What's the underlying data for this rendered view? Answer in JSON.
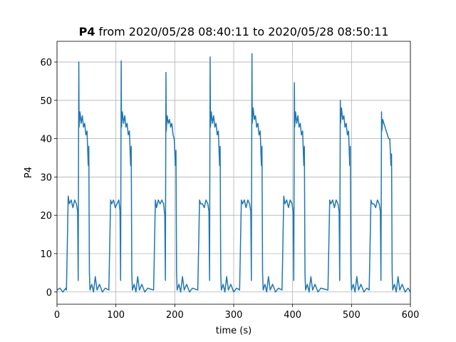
{
  "chart_data": {
    "type": "line",
    "title": [
      "P4",
      "from 2020/05/28 08:40:11 to 2020/05/28 08:50:11"
    ],
    "xlabel": "time (s)",
    "ylabel": "P4",
    "color": "#1f77b4",
    "grid": true,
    "xlim": [
      0,
      600
    ],
    "ylim": [
      -3.2,
      65.4
    ],
    "xticks": [
      0,
      100,
      200,
      300,
      400,
      500,
      600
    ],
    "yticks": [
      0,
      10,
      20,
      30,
      40,
      50,
      60
    ],
    "x": [
      0,
      5,
      10,
      15,
      16,
      17,
      19,
      21,
      24,
      27,
      30,
      33,
      35,
      36,
      37,
      37.5,
      39,
      41,
      43,
      45,
      47,
      49,
      51,
      53,
      54,
      55,
      56,
      59,
      62,
      65,
      68,
      72,
      77,
      82,
      88,
      89,
      91,
      93,
      96,
      99,
      102,
      105,
      107,
      108,
      109,
      109.5,
      111,
      113,
      115,
      117,
      119,
      121,
      123,
      125,
      126,
      127,
      128,
      131,
      134,
      137,
      140,
      144,
      149,
      154,
      164,
      165,
      167,
      169,
      172,
      175,
      178,
      181,
      183,
      184,
      185,
      185.5,
      187,
      189,
      191,
      193,
      195,
      197,
      199,
      201,
      202,
      203,
      204,
      207,
      210,
      213,
      216,
      220,
      225,
      230,
      239,
      240,
      242,
      244,
      247,
      250,
      253,
      256,
      258,
      259,
      260,
      260.5,
      262,
      264,
      266,
      268,
      270,
      272,
      274,
      276,
      277,
      278,
      279,
      282,
      285,
      288,
      291,
      295,
      300,
      305,
      310,
      311,
      313,
      315,
      318,
      321,
      324,
      327,
      329,
      330,
      331,
      331.5,
      333,
      335,
      337,
      339,
      341,
      343,
      345,
      347,
      348,
      349,
      350,
      353,
      356,
      359,
      362,
      366,
      371,
      376,
      382,
      383,
      385,
      387,
      390,
      393,
      396,
      399,
      401,
      402,
      403,
      403.5,
      405,
      407,
      409,
      411,
      413,
      415,
      417,
      419,
      420,
      421,
      422,
      425,
      428,
      431,
      434,
      438,
      443,
      448,
      460,
      461,
      463,
      465,
      468,
      471,
      474,
      477,
      479,
      480,
      481,
      481.5,
      483,
      485,
      487,
      489,
      491,
      493,
      495,
      497,
      498,
      499,
      500,
      503,
      506,
      509,
      512,
      516,
      521,
      526,
      530,
      531,
      533,
      535,
      538,
      541,
      544,
      547,
      549,
      550,
      551,
      551.5,
      553,
      555,
      557,
      559,
      561,
      563,
      565,
      567,
      568,
      569,
      570,
      573,
      576,
      579,
      582,
      586,
      591,
      596,
      600
    ],
    "values": [
      0.5,
      1,
      0,
      1,
      0.5,
      8,
      25,
      23,
      24,
      22,
      24,
      23,
      21,
      3,
      60,
      43,
      47,
      44,
      46,
      43,
      44,
      41,
      42,
      33,
      38,
      5,
      0.5,
      2,
      0,
      4,
      0.5,
      2,
      0,
      1,
      0.5,
      8,
      24,
      23,
      24,
      22,
      23,
      24,
      21,
      3,
      60.3,
      43,
      47,
      44,
      46,
      43,
      44,
      41,
      42,
      33,
      38,
      5,
      0.5,
      2,
      0,
      4,
      0.5,
      2,
      0,
      1,
      0.5,
      8,
      24,
      22,
      24,
      23,
      24,
      23,
      20,
      3,
      57.3,
      42,
      46,
      44,
      45,
      43,
      44,
      41,
      40,
      33,
      37,
      5,
      0.5,
      2,
      0,
      4,
      0.5,
      2,
      0,
      1,
      0.5,
      8,
      24,
      23,
      23,
      22,
      24,
      23,
      21,
      3,
      61.3,
      43,
      47,
      44,
      46,
      43,
      44,
      41,
      42,
      33,
      38,
      5,
      0.5,
      2,
      0,
      4,
      0.5,
      2,
      0,
      1,
      0.5,
      8,
      24,
      23,
      24,
      22,
      24,
      23,
      21,
      3,
      62.2,
      44,
      48,
      45,
      46,
      43,
      44,
      41,
      42,
      33,
      38,
      5,
      0.5,
      2,
      0,
      4,
      0.5,
      2,
      0,
      1,
      0.5,
      8,
      25,
      23,
      24,
      22,
      24,
      23,
      21,
      3,
      54.6,
      43,
      47,
      44,
      46,
      43,
      44,
      41,
      42,
      33,
      38,
      5,
      0.5,
      2,
      0,
      4,
      0.5,
      2,
      0,
      1,
      0.5,
      8,
      24,
      23,
      24,
      22,
      24,
      23,
      21,
      3,
      50,
      44,
      48,
      45,
      46,
      43,
      44,
      41,
      42,
      33,
      38,
      5,
      0.5,
      2,
      0,
      4,
      0.5,
      2,
      0,
      1,
      0.5,
      8,
      24,
      23,
      23,
      22,
      24,
      23,
      21,
      3,
      47,
      42,
      45,
      44,
      43,
      42,
      41,
      40,
      40,
      33,
      36,
      5,
      0.5,
      2,
      0,
      4,
      0.5,
      2,
      0,
      1,
      0
    ]
  }
}
